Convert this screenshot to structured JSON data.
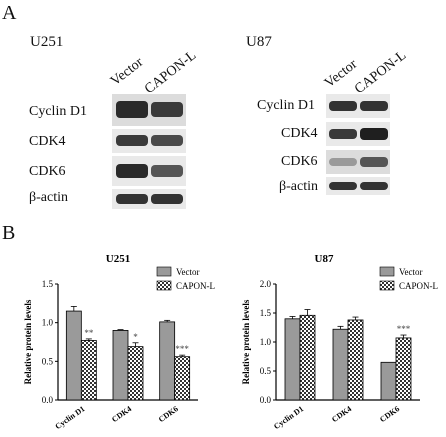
{
  "panel_a": {
    "label": "A",
    "u251": {
      "title": "U251",
      "lanes": [
        "Vector",
        "CAPON-L"
      ],
      "rows": [
        "Cyclin D1",
        "CDK4",
        "CDK6",
        "β-actin"
      ]
    },
    "u87": {
      "title": "U87",
      "lanes": [
        "Vector",
        "CAPON-L"
      ],
      "rows": [
        "Cyclin D1",
        "CDK4",
        "CDK6",
        "β-actin"
      ]
    }
  },
  "panel_b": {
    "label": "B"
  },
  "colors": {
    "vector_fill": "#9a9a9a",
    "caponl_fill": "checkered",
    "axis": "#000000"
  },
  "chart_data": [
    {
      "type": "bar",
      "title": "U251",
      "ylabel": "Relative protein levels",
      "xlabel": "",
      "categories": [
        "Cyclin D1",
        "CDK4",
        "CDK6"
      ],
      "series": [
        {
          "name": "Vector",
          "values": [
            1.15,
            0.9,
            1.01
          ],
          "errors": [
            0.06,
            0.01,
            0.02
          ]
        },
        {
          "name": "CAPON-L",
          "values": [
            0.77,
            0.69,
            0.56
          ],
          "errors": [
            0.02,
            0.05,
            0.02
          ]
        }
      ],
      "significance": [
        "**",
        "*",
        "***"
      ],
      "ylim": [
        0,
        1.5
      ],
      "yticks": [
        "0.0",
        "0.5",
        "1.0",
        "1.5"
      ],
      "legend": "top-right"
    },
    {
      "type": "bar",
      "title": "U87",
      "ylabel": "Relative protein levels",
      "xlabel": "",
      "categories": [
        "Cyclin D1",
        "CDK4",
        "CDK6"
      ],
      "series": [
        {
          "name": "Vector",
          "values": [
            1.4,
            1.22,
            0.65
          ],
          "errors": [
            0.04,
            0.05,
            0.0
          ]
        },
        {
          "name": "CAPON-L",
          "values": [
            1.46,
            1.38,
            1.07
          ],
          "errors": [
            0.1,
            0.05,
            0.05
          ]
        }
      ],
      "significance": [
        "",
        "",
        "***"
      ],
      "ylim": [
        0,
        2.0
      ],
      "yticks": [
        "0.0",
        "0.5",
        "1.0",
        "1.5",
        "2.0"
      ],
      "legend": "top-right"
    }
  ]
}
